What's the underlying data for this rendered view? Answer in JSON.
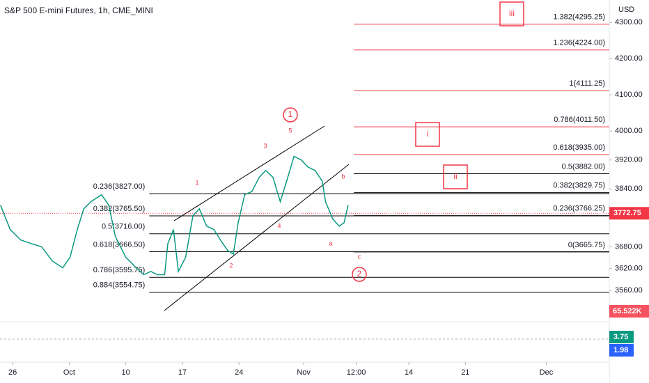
{
  "chart_data": {
    "type": "line",
    "title": "S&P 500 E-mini Futures, 1h, CME_MINI",
    "currency": "USD",
    "color": "#089981",
    "xlim": [
      -1.56,
      73.8
    ],
    "xticks": [
      {
        "value": 0,
        "label": "26"
      },
      {
        "value": 7,
        "label": "Oct"
      },
      {
        "value": 14,
        "label": "10"
      },
      {
        "value": 21,
        "label": "17"
      },
      {
        "value": 28,
        "label": "24"
      },
      {
        "value": 36,
        "label": "Nov"
      },
      {
        "value": 42.5,
        "label": "12:00"
      },
      {
        "value": 49,
        "label": "14"
      },
      {
        "value": 56,
        "label": "21"
      },
      {
        "value": 66,
        "label": "Dec"
      }
    ],
    "ylim": [
      3477,
      4362
    ],
    "yticks": [
      {
        "value": 4300,
        "label": "4300.00"
      },
      {
        "value": 4200,
        "label": "4200.00"
      },
      {
        "value": 4100,
        "label": "4100.00"
      },
      {
        "value": 4000,
        "label": "4000.00"
      },
      {
        "value": 3920,
        "label": "3920.00"
      },
      {
        "value": 3840,
        "label": "3840.00"
      },
      {
        "value": 3680,
        "label": "3680.00"
      },
      {
        "value": 3620,
        "label": "3620.00"
      },
      {
        "value": 3560,
        "label": "3560.00"
      }
    ],
    "x": [
      -1.5,
      -0.3,
      1.0,
      2.3,
      3.6,
      4.9,
      6.2,
      7.1,
      8.0,
      8.8,
      9.7,
      11.0,
      11.9,
      12.7,
      14.0,
      15.3,
      16.2,
      17.1,
      17.9,
      18.8,
      19.2,
      19.9,
      20.5,
      21.4,
      22.3,
      23.1,
      24.0,
      24.9,
      25.7,
      26.6,
      27.3,
      27.9,
      28.7,
      29.6,
      30.5,
      31.3,
      32.2,
      33.1,
      33.9,
      34.8,
      35.7,
      36.5,
      37.4,
      38.3,
      38.7,
      39.6,
      40.4,
      41.0,
      41.5
    ],
    "values": [
      3795,
      3728,
      3699,
      3689,
      3680,
      3641,
      3622,
      3651,
      3728,
      3785,
      3805,
      3824,
      3795,
      3709,
      3651,
      3622,
      3603,
      3612,
      3603,
      3603,
      3689,
      3728,
      3612,
      3651,
      3766,
      3785,
      3737,
      3728,
      3699,
      3670,
      3660,
      3747,
      3824,
      3833,
      3872,
      3891,
      3872,
      3805,
      3862,
      3930,
      3920,
      3901,
      3891,
      3862,
      3805,
      3757,
      3737,
      3747,
      3795
    ],
    "last_price": {
      "value": 3772.75,
      "label": "3772.75"
    },
    "volume_tag": "65.522K",
    "oscillator_tags": [
      "3.75",
      "1.98"
    ],
    "levels": [
      {
        "color": "#000000",
        "from": 16.9,
        "side": "left",
        "items": [
          {
            "label": "0.236(3827.00)",
            "price": 3827
          },
          {
            "label": "0.382(3765.50)",
            "price": 3765.5
          },
          {
            "label": "0.5(3716.00)",
            "price": 3716
          },
          {
            "label": "0.618(3666.50)",
            "price": 3666.5
          },
          {
            "label": "0.786(3595.75)",
            "price": 3595.75
          },
          {
            "label": "0.884(3554.75)",
            "price": 3554.75
          }
        ]
      },
      {
        "color": "#000000",
        "from": 42.2,
        "side": "right",
        "items": [
          {
            "label": "0.5(3882.00)",
            "price": 3882
          },
          {
            "label": "0.382(3829.75)",
            "price": 3829.75
          },
          {
            "label": "0.236(3766.25)",
            "price": 3766.25
          },
          {
            "label": "0(3665.75)",
            "price": 3665.75
          }
        ]
      },
      {
        "color": "#f23645",
        "from": 42.2,
        "side": "right",
        "items": [
          {
            "label": "1.382(4295.25)",
            "price": 4295.25
          },
          {
            "label": "1.236(4224.00)",
            "price": 4224
          },
          {
            "label": "1(4111.25)",
            "price": 4111.25
          },
          {
            "label": "0.786(4011.50)",
            "price": 4011.5
          },
          {
            "label": "0.618(3935.00)",
            "price": 3935
          }
        ]
      }
    ],
    "annotations": [
      "1",
      "5",
      "3",
      "1",
      "4",
      "2",
      "a",
      "b",
      "c",
      "2",
      "i",
      "ii",
      "iii"
    ]
  }
}
